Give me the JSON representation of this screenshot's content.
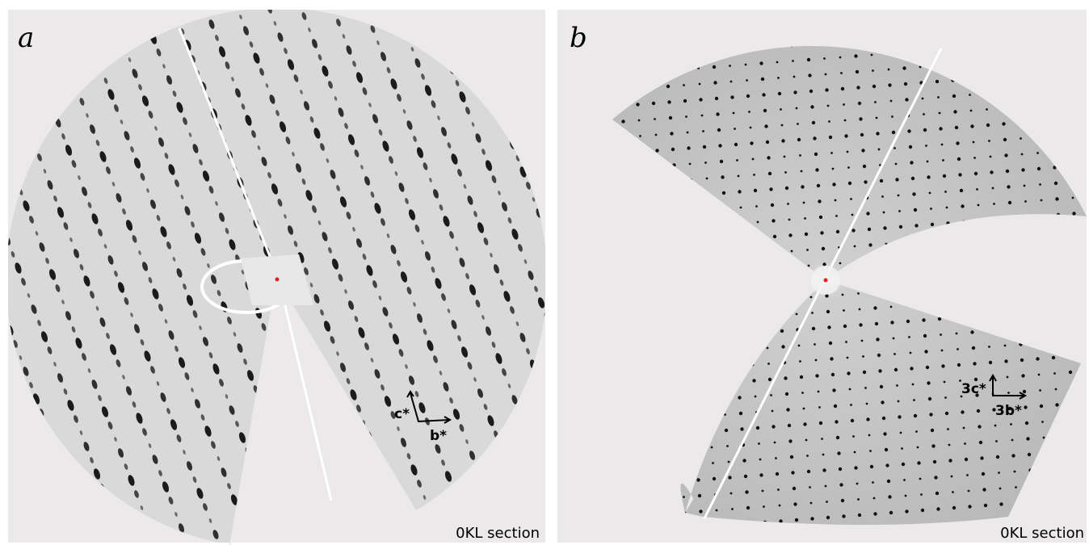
{
  "panels": [
    {
      "label": "a",
      "axes": [
        "c*",
        "b*"
      ],
      "caption": "0KL section"
    },
    {
      "label": "b",
      "axes": [
        "3c*",
        "3b*"
      ],
      "caption": "0KL section"
    }
  ]
}
